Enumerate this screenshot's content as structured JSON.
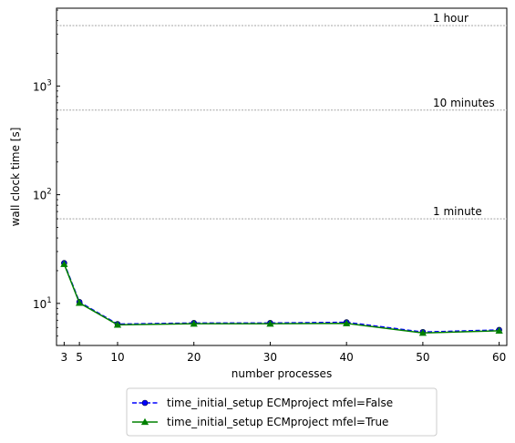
{
  "chart_data": {
    "type": "line",
    "xlabel": "number processes",
    "ylabel": "wall clock time [s]",
    "yscale": "log",
    "xlim": [
      2,
      61
    ],
    "ylim": [
      4.1,
      5200
    ],
    "xticks": [
      3,
      5,
      10,
      20,
      30,
      40,
      50,
      60
    ],
    "yticks": [
      {
        "value": 10,
        "base": "10",
        "exp": "1"
      },
      {
        "value": 100,
        "base": "10",
        "exp": "2"
      },
      {
        "value": 1000,
        "base": "10",
        "exp": "3"
      }
    ],
    "reference_lines": [
      {
        "value": 60,
        "label": "1 minute"
      },
      {
        "value": 600,
        "label": "10 minutes"
      },
      {
        "value": 3600,
        "label": "1 hour"
      }
    ],
    "x": [
      3,
      5,
      10,
      20,
      30,
      40,
      50,
      60
    ],
    "series": [
      {
        "name": "time_initial_setup ECMproject mfel=False",
        "color": "#0000ff",
        "line_style": "dashed",
        "marker": "circle",
        "values": [
          23.5,
          10.3,
          6.45,
          6.6,
          6.6,
          6.7,
          5.45,
          5.7
        ]
      },
      {
        "name": "time_initial_setup ECMproject mfel=True",
        "color": "#008000",
        "line_style": "solid",
        "marker": "triangle",
        "values": [
          23.0,
          10.1,
          6.35,
          6.5,
          6.5,
          6.55,
          5.35,
          5.6
        ]
      }
    ],
    "legend": "bottom-center, below plot",
    "grid": false
  }
}
